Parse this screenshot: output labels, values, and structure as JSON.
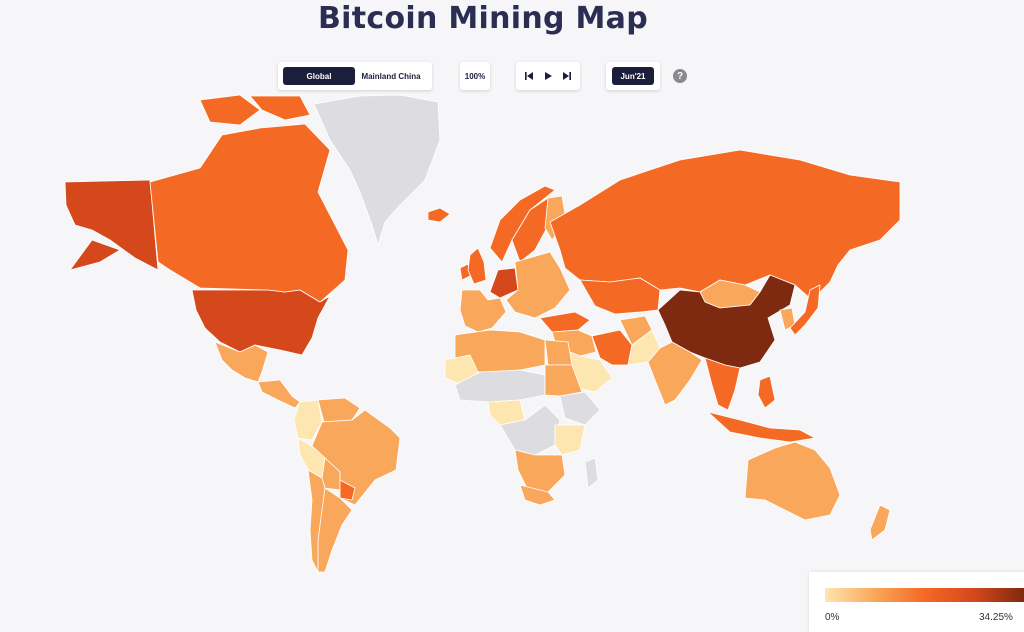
{
  "title": "Bitcoin Mining Map",
  "controls": {
    "scope_tabs": [
      "Global",
      "Mainland China"
    ],
    "scope_selected": "Global",
    "zoom": "100%",
    "date": "Jun'21",
    "help_icon": "question-circle-icon",
    "player_icons": [
      "skip-back-icon",
      "play-icon",
      "skip-forward-icon"
    ]
  },
  "legend": {
    "min_label": "0%",
    "max_label": "34.25%",
    "colors": [
      "#fde6b0",
      "#f9a75a",
      "#f46a24",
      "#d4481b",
      "#7d2a10"
    ]
  },
  "map": {
    "no_data_color": "#dddde1",
    "background_color": "#f6f6f8",
    "colors": {
      "very_low": "#fde6b0",
      "low": "#f9a75a",
      "medium": "#f46a24",
      "high": "#d4481b",
      "very_high": "#7d2a10"
    },
    "regions": [
      {
        "name": "United States",
        "level": "high"
      },
      {
        "name": "Alaska",
        "level": "high"
      },
      {
        "name": "Canada",
        "level": "medium"
      },
      {
        "name": "Greenland",
        "level": "none"
      },
      {
        "name": "Mexico",
        "level": "low"
      },
      {
        "name": "Central America",
        "level": "low"
      },
      {
        "name": "Colombia",
        "level": "very_low"
      },
      {
        "name": "Venezuela",
        "level": "low"
      },
      {
        "name": "Brazil",
        "level": "low"
      },
      {
        "name": "Peru",
        "level": "very_low"
      },
      {
        "name": "Bolivia",
        "level": "low"
      },
      {
        "name": "Paraguay",
        "level": "medium"
      },
      {
        "name": "Argentina",
        "level": "low"
      },
      {
        "name": "Chile",
        "level": "low"
      },
      {
        "name": "Iceland",
        "level": "medium"
      },
      {
        "name": "Ireland",
        "level": "medium"
      },
      {
        "name": "United Kingdom",
        "level": "medium"
      },
      {
        "name": "Norway",
        "level": "medium"
      },
      {
        "name": "Sweden",
        "level": "medium"
      },
      {
        "name": "Finland",
        "level": "low"
      },
      {
        "name": "Western Europe",
        "level": "low"
      },
      {
        "name": "Germany",
        "level": "high"
      },
      {
        "name": "Eastern Europe",
        "level": "low"
      },
      {
        "name": "Turkey",
        "level": "medium"
      },
      {
        "name": "Russia",
        "level": "medium"
      },
      {
        "name": "Kazakhstan",
        "level": "medium"
      },
      {
        "name": "Mongolia",
        "level": "low"
      },
      {
        "name": "China",
        "level": "very_high"
      },
      {
        "name": "Korea",
        "level": "low"
      },
      {
        "name": "Japan",
        "level": "medium"
      },
      {
        "name": "Middle East",
        "level": "low"
      },
      {
        "name": "Saudi Arabia",
        "level": "very_low"
      },
      {
        "name": "Iran",
        "level": "medium"
      },
      {
        "name": "Afghanistan",
        "level": "low"
      },
      {
        "name": "Pakistan",
        "level": "very_low"
      },
      {
        "name": "India",
        "level": "low"
      },
      {
        "name": "Southeast Asia",
        "level": "medium"
      },
      {
        "name": "Indonesia",
        "level": "medium"
      },
      {
        "name": "Philippines",
        "level": "medium"
      },
      {
        "name": "Australia",
        "level": "low"
      },
      {
        "name": "New Zealand",
        "level": "low"
      },
      {
        "name": "North Africa",
        "level": "low"
      },
      {
        "name": "Egypt",
        "level": "low"
      },
      {
        "name": "West Sahara",
        "level": "very_low"
      },
      {
        "name": "Sahel",
        "level": "none"
      },
      {
        "name": "Sudan",
        "level": "low"
      },
      {
        "name": "Ethiopia",
        "level": "none"
      },
      {
        "name": "Nigeria",
        "level": "very_low"
      },
      {
        "name": "Central Africa",
        "level": "none"
      },
      {
        "name": "East Africa",
        "level": "very_low"
      },
      {
        "name": "Southern Africa",
        "level": "low"
      },
      {
        "name": "South Africa",
        "level": "low"
      },
      {
        "name": "Madagascar",
        "level": "none"
      }
    ]
  }
}
